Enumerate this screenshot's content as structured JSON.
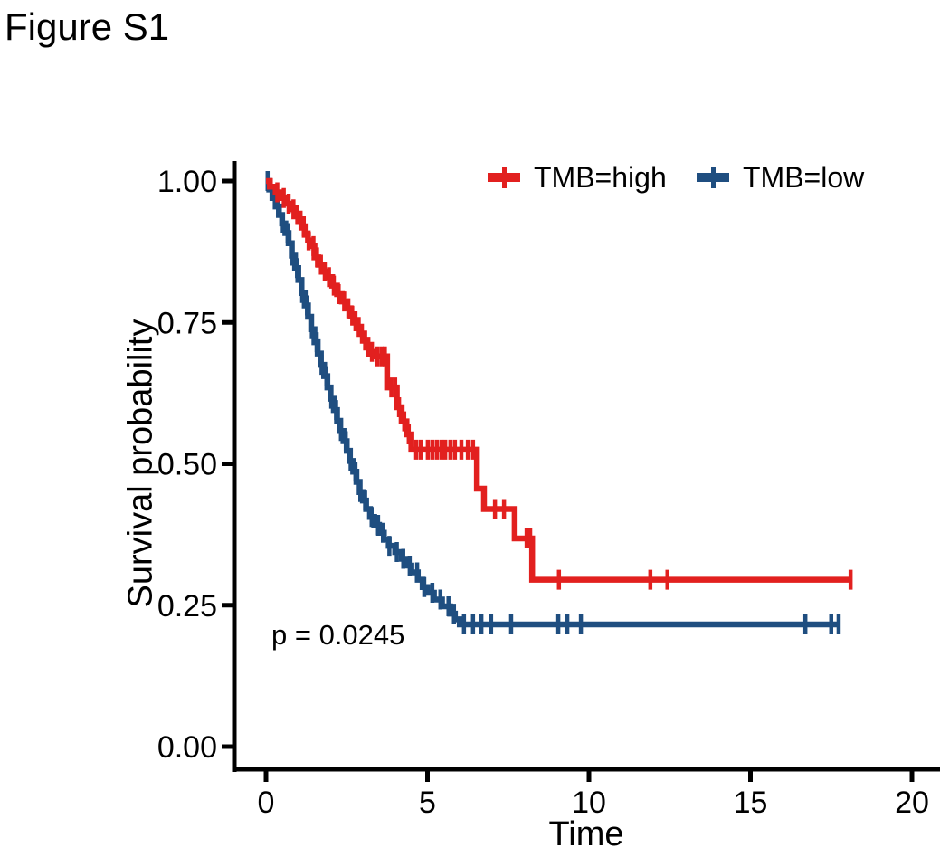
{
  "figure": {
    "title": "Figure S1"
  },
  "chart_data": {
    "type": "line",
    "subtype": "kaplan-meier-survival-step",
    "title": "",
    "xlabel": "Time",
    "ylabel": "Survival probability",
    "xlim": [
      0,
      20
    ],
    "ylim": [
      0,
      1
    ],
    "grid": false,
    "legend_position": "top",
    "annotation": {
      "text": "p = 0.0245",
      "time": 0.2,
      "survival": 0.2
    },
    "x_ticks": {
      "values": [
        0,
        5,
        10,
        15,
        20
      ],
      "labels": [
        "0",
        "5",
        "10",
        "15",
        "20"
      ]
    },
    "y_ticks": {
      "values": [
        1.0,
        0.75,
        0.5,
        0.25,
        0.0
      ],
      "labels": [
        "1.00",
        "0.75",
        "0.50",
        "0.25",
        "0.00"
      ]
    },
    "axis_color": "#000000",
    "series": [
      {
        "name": "TMB=low",
        "color": "#1F4E80",
        "steps": [
          [
            0,
            1.0
          ],
          [
            0.1,
            0.985
          ],
          [
            0.2,
            0.97
          ],
          [
            0.3,
            0.955
          ],
          [
            0.4,
            0.94
          ],
          [
            0.5,
            0.925
          ],
          [
            0.6,
            0.908
          ],
          [
            0.7,
            0.89
          ],
          [
            0.8,
            0.868
          ],
          [
            0.9,
            0.846
          ],
          [
            1.0,
            0.825
          ],
          [
            1.1,
            0.802
          ],
          [
            1.2,
            0.78
          ],
          [
            1.3,
            0.76
          ],
          [
            1.4,
            0.738
          ],
          [
            1.5,
            0.715
          ],
          [
            1.6,
            0.695
          ],
          [
            1.7,
            0.675
          ],
          [
            1.8,
            0.655
          ],
          [
            1.9,
            0.635
          ],
          [
            2.0,
            0.615
          ],
          [
            2.1,
            0.595
          ],
          [
            2.2,
            0.576
          ],
          [
            2.3,
            0.558
          ],
          [
            2.4,
            0.54
          ],
          [
            2.5,
            0.523
          ],
          [
            2.6,
            0.505
          ],
          [
            2.7,
            0.486
          ],
          [
            2.8,
            0.468
          ],
          [
            2.9,
            0.45
          ],
          [
            3.0,
            0.435
          ],
          [
            3.1,
            0.42
          ],
          [
            3.22,
            0.406
          ],
          [
            3.35,
            0.392
          ],
          [
            3.5,
            0.378
          ],
          [
            3.65,
            0.366
          ],
          [
            3.8,
            0.355
          ],
          [
            4.0,
            0.344
          ],
          [
            4.2,
            0.332
          ],
          [
            4.35,
            0.32
          ],
          [
            4.5,
            0.308
          ],
          [
            4.7,
            0.295
          ],
          [
            4.85,
            0.282
          ],
          [
            5.0,
            0.272
          ],
          [
            5.2,
            0.26
          ],
          [
            5.45,
            0.248
          ],
          [
            5.7,
            0.235
          ],
          [
            5.85,
            0.225
          ],
          [
            6.0,
            0.216
          ],
          [
            17.75,
            0.216
          ]
        ],
        "censor_times": [
          0.05,
          0.38,
          0.52,
          0.67,
          0.82,
          0.96,
          1.12,
          1.27,
          1.42,
          1.57,
          1.72,
          1.87,
          2.02,
          2.17,
          2.32,
          2.47,
          2.62,
          2.77,
          2.92,
          3.07,
          3.27,
          3.47,
          3.62,
          3.82,
          4.05,
          4.25,
          4.45,
          4.68,
          4.9,
          5.15,
          5.4,
          5.65,
          5.82,
          6.13,
          6.41,
          6.67,
          6.97,
          7.59,
          9.05,
          9.33,
          9.75,
          16.7,
          17.5,
          17.73
        ]
      },
      {
        "name": "TMB=high",
        "color": "#E2201F",
        "steps": [
          [
            0,
            1.0
          ],
          [
            0.12,
            0.99
          ],
          [
            0.3,
            0.98
          ],
          [
            0.45,
            0.97
          ],
          [
            0.6,
            0.96
          ],
          [
            0.75,
            0.95
          ],
          [
            0.9,
            0.94
          ],
          [
            1.0,
            0.93
          ],
          [
            1.1,
            0.92
          ],
          [
            1.2,
            0.905
          ],
          [
            1.3,
            0.895
          ],
          [
            1.4,
            0.885
          ],
          [
            1.5,
            0.865
          ],
          [
            1.62,
            0.852
          ],
          [
            1.75,
            0.84
          ],
          [
            1.9,
            0.83
          ],
          [
            2.05,
            0.815
          ],
          [
            2.2,
            0.8
          ],
          [
            2.35,
            0.787
          ],
          [
            2.5,
            0.775
          ],
          [
            2.62,
            0.762
          ],
          [
            2.72,
            0.752
          ],
          [
            2.82,
            0.742
          ],
          [
            2.92,
            0.73
          ],
          [
            3.02,
            0.718
          ],
          [
            3.12,
            0.707
          ],
          [
            3.22,
            0.698
          ],
          [
            3.33,
            0.69
          ],
          [
            3.75,
            0.635
          ],
          [
            4.05,
            0.6
          ],
          [
            4.2,
            0.575
          ],
          [
            4.35,
            0.552
          ],
          [
            4.5,
            0.525
          ],
          [
            6.53,
            0.456
          ],
          [
            6.75,
            0.42
          ],
          [
            7.7,
            0.368
          ],
          [
            8.24,
            0.295
          ],
          [
            18.12,
            0.295
          ]
        ],
        "censor_times": [
          0.35,
          0.55,
          0.7,
          0.85,
          0.97,
          1.07,
          1.17,
          1.32,
          1.47,
          1.58,
          1.7,
          1.82,
          1.95,
          2.1,
          2.25,
          2.42,
          2.55,
          2.67,
          2.77,
          2.87,
          2.97,
          3.07,
          3.17,
          3.28,
          3.45,
          3.58,
          3.68,
          3.88,
          4.0,
          4.12,
          4.28,
          4.42,
          4.65,
          4.79,
          5.01,
          5.15,
          5.29,
          5.43,
          5.55,
          5.71,
          5.85,
          6.05,
          6.25,
          6.41,
          7.09,
          7.37,
          8.07,
          8.18,
          9.07,
          11.9,
          12.43,
          18.1
        ]
      }
    ]
  }
}
